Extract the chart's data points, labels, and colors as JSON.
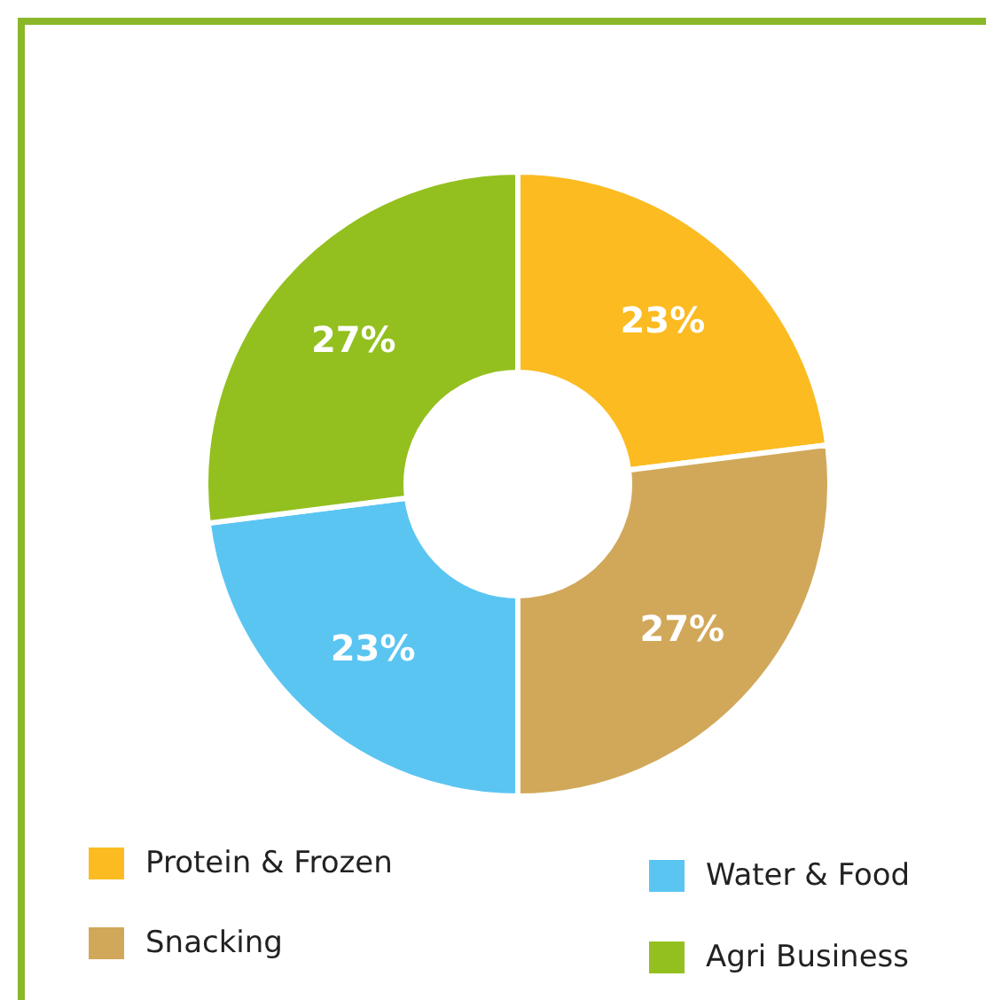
{
  "chart_data": {
    "type": "donut",
    "categories": [
      "Protein & Frozen",
      "Snacking",
      "Water & Food",
      "Agri Business"
    ],
    "values": [
      23,
      27,
      23,
      27
    ],
    "colors": [
      "#fbbb21",
      "#d1a85a",
      "#5bc5f2",
      "#93c01f"
    ],
    "value_labels": [
      "23%",
      "27%",
      "23%",
      "27%"
    ],
    "legend": "bottom"
  }
}
